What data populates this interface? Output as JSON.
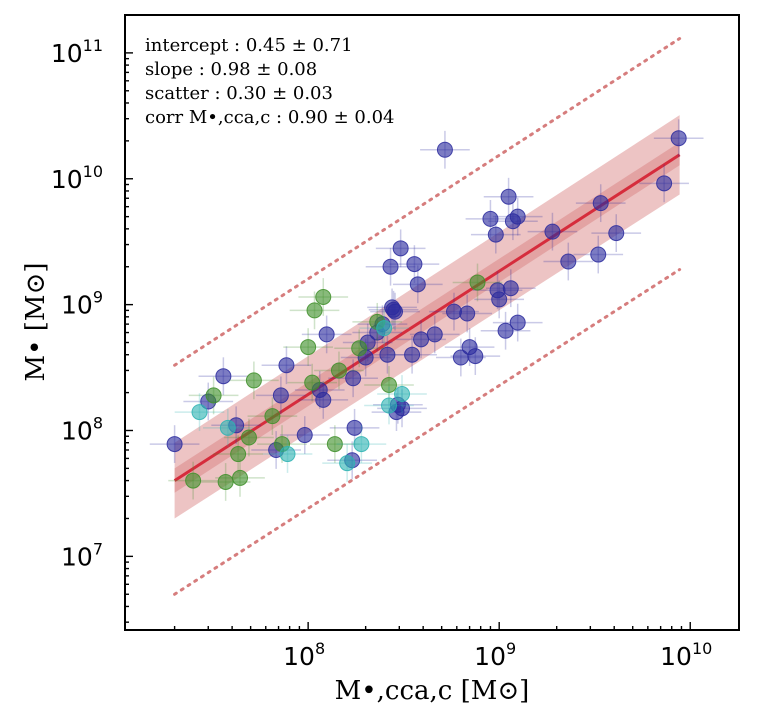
{
  "annotations": [
    "intercept :  0.45 ± 0.71",
    "slope :  0.98 ± 0.08",
    "scatter :  0.30 ± 0.03",
    "corr M•,cca,c :  0.90 ± 0.04"
  ],
  "chart_data": {
    "type": "scatter",
    "xlabel": "M•,cca,c [M⊙]",
    "ylabel": "M• [M⊙]",
    "x_scale": "log",
    "y_scale": "log",
    "xlim": [
      11000000.0,
      18000000000.0
    ],
    "ylim": [
      2600000.0,
      200000000000.0
    ],
    "x_ticks": [
      {
        "value": 100000000.0,
        "label": "10",
        "exp": "8"
      },
      {
        "value": 1000000000.0,
        "label": "10",
        "exp": "9"
      },
      {
        "value": 10000000000.0,
        "label": "10",
        "exp": "10"
      }
    ],
    "y_ticks": [
      {
        "value": 10000000.0,
        "label": "10",
        "exp": "7"
      },
      {
        "value": 100000000.0,
        "label": "10",
        "exp": "8"
      },
      {
        "value": 1000000000.0,
        "label": "10",
        "exp": "9"
      },
      {
        "value": 10000000000.0,
        "label": "10",
        "exp": "10"
      },
      {
        "value": 100000000000.0,
        "label": "10",
        "exp": "11"
      }
    ],
    "grid": false,
    "fit": {
      "x_range": [
        20000000.0,
        8800000000.0
      ],
      "line_y": [
        40000000.0,
        15500000000.0
      ],
      "inner_band_low": [
        32000000.0,
        12800000000.0
      ],
      "inner_band_high": [
        50000000.0,
        19500000000.0
      ],
      "outer_band_low": [
        20000000.0,
        7500000000.0
      ],
      "outer_band_high": [
        80000000.0,
        32000000000.0
      ],
      "scatter_low": [
        5000000.0,
        1900000000.0
      ],
      "scatter_high": [
        330000000.0,
        130000000000.0
      ],
      "line_color": "#d62c3c",
      "band_color": "#d67d7d",
      "scatter_color": "#d67d7d"
    },
    "series": [
      {
        "color": "#2b2b9e",
        "points": [
          [
            20000000.0,
            78000000.0
          ],
          [
            30000000.0,
            170000000.0
          ],
          [
            36000000.0,
            270000000.0
          ],
          [
            42000000.0,
            110000000.0
          ],
          [
            68000000.0,
            70000000.0
          ],
          [
            72000000.0,
            190000000.0
          ],
          [
            77000000.0,
            330000000.0
          ],
          [
            96000000.0,
            92000000.0
          ],
          [
            115000000.0,
            210000000.0
          ],
          [
            120000000.0,
            175000000.0
          ],
          [
            125000000.0,
            580000000.0
          ],
          [
            172000000.0,
            260000000.0
          ],
          [
            175000000.0,
            105000000.0
          ],
          [
            170000000.0,
            58000000.0
          ],
          [
            200000000.0,
            380000000.0
          ],
          [
            205000000.0,
            500000000.0
          ],
          [
            230000000.0,
            600000000.0
          ],
          [
            245000000.0,
            700000000.0
          ],
          [
            260000000.0,
            400000000.0
          ],
          [
            270000000.0,
            2000000000.0
          ],
          [
            275000000.0,
            950000000.0
          ],
          [
            280000000.0,
            910000000.0
          ],
          [
            285000000.0,
            880000000.0
          ],
          [
            290000000.0,
            140000000.0
          ],
          [
            295000000.0,
            160000000.0
          ],
          [
            305000000.0,
            2800000000.0
          ],
          [
            310000000.0,
            150000000.0
          ],
          [
            350000000.0,
            400000000.0
          ],
          [
            360000000.0,
            2100000000.0
          ],
          [
            375000000.0,
            1450000000.0
          ],
          [
            390000000.0,
            530000000.0
          ],
          [
            460000000.0,
            580000000.0
          ],
          [
            520000000.0,
            17000000000.0
          ],
          [
            580000000.0,
            880000000.0
          ],
          [
            630000000.0,
            380000000.0
          ],
          [
            680000000.0,
            850000000.0
          ],
          [
            700000000.0,
            460000000.0
          ],
          [
            750000000.0,
            390000000.0
          ],
          [
            900000000.0,
            4800000000.0
          ],
          [
            960000000.0,
            3600000000.0
          ],
          [
            980000000.0,
            1300000000.0
          ],
          [
            1000000000.0,
            1100000000.0
          ],
          [
            1080000000.0,
            620000000.0
          ],
          [
            1120000000.0,
            7200000000.0
          ],
          [
            1150000000.0,
            1350000000.0
          ],
          [
            1180000000.0,
            4600000000.0
          ],
          [
            1250000000.0,
            5000000000.0
          ],
          [
            1250000000.0,
            720000000.0
          ],
          [
            1900000000.0,
            3800000000.0
          ],
          [
            2300000000.0,
            2200000000.0
          ],
          [
            3300000000.0,
            2500000000.0
          ],
          [
            3400000000.0,
            6400000000.0
          ],
          [
            4100000000.0,
            3700000000.0
          ],
          [
            7300000000.0,
            9200000000.0
          ],
          [
            8700000000.0,
            21000000000.0
          ]
        ]
      },
      {
        "color": "#3f8f2a",
        "points": [
          [
            25000000.0,
            40000000.0
          ],
          [
            32000000.0,
            190000000.0
          ],
          [
            37000000.0,
            39000000.0
          ],
          [
            43000000.0,
            65000000.0
          ],
          [
            44000000.0,
            42000000.0
          ],
          [
            49000000.0,
            88000000.0
          ],
          [
            52000000.0,
            250000000.0
          ],
          [
            65000000.0,
            130000000.0
          ],
          [
            73000000.0,
            78000000.0
          ],
          [
            100000000.0,
            460000000.0
          ],
          [
            105000000.0,
            240000000.0
          ],
          [
            108000000.0,
            900000000.0
          ],
          [
            120000000.0,
            1150000000.0
          ],
          [
            138000000.0,
            78000000.0
          ],
          [
            145000000.0,
            300000000.0
          ],
          [
            185000000.0,
            450000000.0
          ],
          [
            230000000.0,
            730000000.0
          ],
          [
            265000000.0,
            230000000.0
          ],
          [
            770000000.0,
            1500000000.0
          ]
        ]
      },
      {
        "color": "#2fb3b3",
        "points": [
          [
            27000000.0,
            140000000.0
          ],
          [
            38000000.0,
            105000000.0
          ],
          [
            78000000.0,
            65000000.0
          ],
          [
            160000000.0,
            55000000.0
          ],
          [
            190000000.0,
            78000000.0
          ],
          [
            265000000.0,
            158000000.0
          ],
          [
            310000000.0,
            195000000.0
          ],
          [
            250000000.0,
            650000000.0
          ]
        ]
      }
    ]
  }
}
